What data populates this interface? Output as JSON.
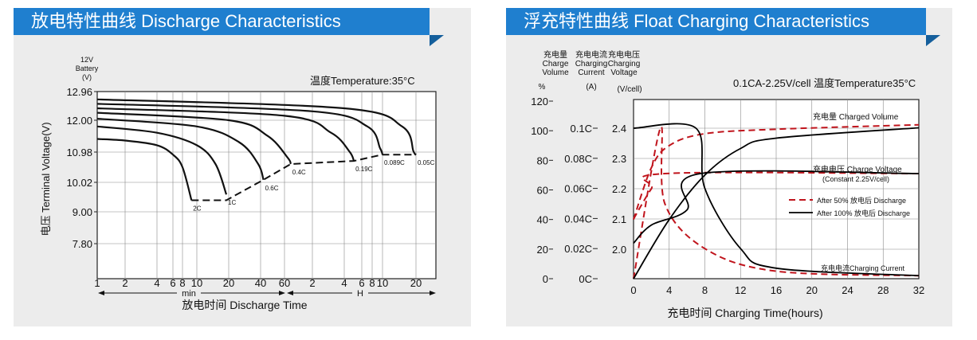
{
  "chart_data": [
    {
      "type": "line",
      "title": "放电特性曲线 Discharge Characteristics",
      "ylabel": "电压 Terminal Voltage(V)",
      "ylabel_top": [
        "12V",
        "Battery",
        "(V)"
      ],
      "xlabel": "放电时间 Discharge Time",
      "x_unit_labels": [
        "min",
        "H"
      ],
      "annotation": "温度Temperature:35°C",
      "yticks": [
        "12.96",
        "12.00",
        "10.98",
        "10.02",
        "9.00",
        "7.80"
      ],
      "xticks": [
        "1",
        "2",
        "4",
        "6",
        "8",
        "10",
        "20",
        "40",
        "60",
        "2",
        "4",
        "6",
        "8",
        "10",
        "20"
      ],
      "x_scale": "log (1 min – 20 h)",
      "grid": true,
      "series": [
        {
          "name": "2C",
          "points": [
            [
              1,
              11.4
            ],
            [
              2,
              11.35
            ],
            [
              4,
              11.2
            ],
            [
              6,
              10.9
            ],
            [
              8,
              10.5
            ],
            [
              9.2,
              9.4
            ]
          ]
        },
        {
          "name": "1C",
          "points": [
            [
              1,
              11.8
            ],
            [
              4,
              11.6
            ],
            [
              10,
              11.2
            ],
            [
              15,
              10.6
            ],
            [
              19,
              9.6
            ]
          ]
        },
        {
          "name": "0.6C",
          "points": [
            [
              1,
              12.05
            ],
            [
              10,
              11.8
            ],
            [
              25,
              11.3
            ],
            [
              38,
              10.6
            ],
            [
              42,
              10.1
            ]
          ]
        },
        {
          "name": "0.4C",
          "points": [
            [
              1,
              12.25
            ],
            [
              20,
              12.0
            ],
            [
              45,
              11.5
            ],
            [
              65,
              10.8
            ],
            [
              70,
              10.6
            ]
          ]
        },
        {
          "name": "0.19C",
          "points": [
            [
              1,
              12.4
            ],
            [
              60,
              12.15
            ],
            [
              180,
              11.6
            ],
            [
              270,
              11.0
            ],
            [
              300,
              10.7
            ]
          ]
        },
        {
          "name": "0.089C",
          "points": [
            [
              1,
              12.55
            ],
            [
              120,
              12.3
            ],
            [
              420,
              11.8
            ],
            [
              570,
              11.1
            ],
            [
              600,
              10.9
            ]
          ]
        },
        {
          "name": "0.05C",
          "points": [
            [
              1,
              12.7
            ],
            [
              240,
              12.4
            ],
            [
              900,
              11.8
            ],
            [
              1140,
              11.0
            ],
            [
              1200,
              10.9
            ]
          ]
        }
      ],
      "cutoff_line": [
        [
          9.2,
          9.4
        ],
        [
          19,
          9.4
        ],
        [
          42,
          10.1
        ],
        [
          70,
          10.6
        ],
        [
          300,
          10.7
        ],
        [
          600,
          10.9
        ],
        [
          1200,
          10.9
        ]
      ]
    },
    {
      "type": "line",
      "title": "浮充特性曲线 Float Charging Characteristics",
      "xlabel": "充电时间 Charging Time(hours)",
      "annotation": "0.1CA-2.25V/cell 温度Temperature35°C",
      "axis_headers": {
        "charge_volume": [
          "充电量",
          "Charge",
          "Volume",
          "%"
        ],
        "charging_current": [
          "充电电流",
          "Charging",
          "Current",
          "(A)"
        ],
        "charging_voltage": [
          "充电电压",
          "Charging",
          "Voltage",
          "(V/cell)"
        ]
      },
      "xticks": [
        "0",
        "4",
        "8",
        "12",
        "16",
        "20",
        "24",
        "28",
        "32"
      ],
      "yticks_volume": [
        "120",
        "100",
        "80",
        "60",
        "40",
        "20",
        "0"
      ],
      "yticks_current": [
        "0.1C",
        "0.08C",
        "0.06C",
        "0.04C",
        "0.02C",
        "0C"
      ],
      "yticks_voltage": [
        "2.4",
        "2.3",
        "2.2",
        "2.1",
        "2.0"
      ],
      "xlim": [
        0,
        32
      ],
      "grid": true,
      "legend": [
        "After 50% 放电后 Discharge",
        "After 100% 放电后 Discharge"
      ],
      "curve_labels": [
        "充电量 Charged Volume",
        "充电电压 Charge Voltage",
        "(Constant 2.25V/cell)",
        "充电电流Charging Current"
      ],
      "series": [
        {
          "name": "After 50% 放电后 Discharge",
          "color": "#c0141c",
          "dashed": true,
          "charged_volume_pct": [
            [
              0,
              40
            ],
            [
              2,
              75
            ],
            [
              4,
              90
            ],
            [
              8,
              98
            ],
            [
              16,
              101
            ],
            [
              32,
              104
            ]
          ],
          "charge_voltage": [
            [
              0,
              2.1
            ],
            [
              2,
              2.2
            ],
            [
              3.5,
              2.25
            ],
            [
              32,
              2.25
            ]
          ],
          "charging_current_c": [
            [
              0,
              0
            ],
            [
              3,
              0.1
            ],
            [
              3.5,
              0.05
            ],
            [
              8,
              0.02
            ],
            [
              16,
              0.005
            ],
            [
              32,
              0.002
            ]
          ]
        },
        {
          "name": "After 100% 放电后 Discharge",
          "color": "#000000",
          "dashed": false,
          "charged_volume_pct": [
            [
              0,
              0
            ],
            [
              4,
              40
            ],
            [
              8,
              70
            ],
            [
              12,
              88
            ],
            [
              16,
              95
            ],
            [
              32,
              102
            ]
          ],
          "charge_voltage": [
            [
              0,
              2.02
            ],
            [
              2,
              2.08
            ],
            [
              6,
              2.13
            ],
            [
              7.5,
              2.25
            ],
            [
              32,
              2.25
            ]
          ],
          "charging_current_c": [
            [
              0,
              0.1
            ],
            [
              7,
              0.1
            ],
            [
              8,
              0.06
            ],
            [
              12,
              0.02
            ],
            [
              16,
              0.007
            ],
            [
              32,
              0.002
            ]
          ]
        }
      ]
    }
  ]
}
